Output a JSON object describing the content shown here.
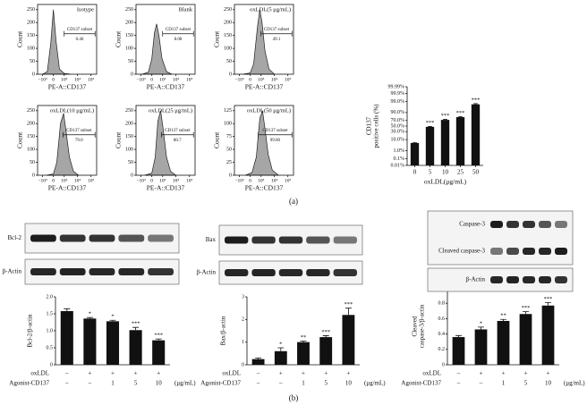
{
  "panel_labels": [
    "(a)",
    "(b)"
  ],
  "chart_data": [
    {
      "type": "flow-histogram",
      "title": "Isotype",
      "xlabel": "PE-A::CD137",
      "ylabel": "Count",
      "color": "#a6a6a6",
      "x": [
        -1000,
        -400,
        -150,
        0,
        150,
        400,
        1000,
        3000
      ],
      "values": [
        0,
        10,
        120,
        250,
        130,
        20,
        3,
        0
      ],
      "xlim": [
        -2400,
        262144
      ],
      "xticks": [
        {
          "value": -1000,
          "label": "−10³"
        },
        0,
        {
          "value": 1000,
          "label": "10³"
        },
        {
          "value": 10000,
          "label": "10⁴"
        },
        {
          "value": 100000,
          "label": "10⁵"
        }
      ],
      "ylim": [
        0,
        270
      ],
      "yticks": [
        0,
        50,
        100,
        150,
        200,
        250
      ],
      "gate": [
        1000,
        200000
      ],
      "gate_label": "CD137 subset",
      "gate_percent": 0.46
    },
    {
      "type": "flow-histogram",
      "title": "Blank",
      "xlabel": "PE-A::CD137",
      "ylabel": "Count",
      "color": "#a6a6a6",
      "x": [
        -800,
        -200,
        0,
        150,
        300,
        500,
        900,
        2000,
        5000
      ],
      "values": [
        0,
        8,
        60,
        160,
        195,
        150,
        60,
        10,
        0
      ],
      "xlim": [
        -2400,
        262144
      ],
      "xticks": [
        {
          "value": -1000,
          "label": "−10³"
        },
        0,
        {
          "value": 1000,
          "label": "10³"
        },
        {
          "value": 10000,
          "label": "10⁴"
        },
        {
          "value": 100000,
          "label": "10⁵"
        }
      ],
      "ylim": [
        0,
        270
      ],
      "yticks": [
        0,
        50,
        100,
        150,
        200,
        250
      ],
      "gate": [
        1000,
        200000
      ],
      "gate_label": "CD137 subset",
      "gate_percent": 8.08
    },
    {
      "type": "flow-histogram",
      "title": "oxLDL(5 μg/mL)",
      "xlabel": "PE-A::CD137",
      "ylabel": "Count",
      "color": "#a6a6a6",
      "x": [
        -500,
        0,
        200,
        500,
        800,
        1200,
        2000,
        4000,
        10000
      ],
      "values": [
        0,
        5,
        40,
        180,
        250,
        200,
        90,
        20,
        0
      ],
      "xlim": [
        -2400,
        262144
      ],
      "xticks": [
        {
          "value": -1000,
          "label": "−10³"
        },
        0,
        {
          "value": 1000,
          "label": "10³"
        },
        {
          "value": 10000,
          "label": "10⁴"
        },
        {
          "value": 100000,
          "label": "10⁵"
        }
      ],
      "ylim": [
        0,
        270
      ],
      "yticks": [
        0,
        50,
        100,
        150,
        200,
        250
      ],
      "gate": [
        1000,
        200000
      ],
      "gate_label": "CD137 subset",
      "gate_percent": 49.1
    },
    {
      "type": "flow-histogram",
      "title": "oxLDL(10 μg/mL)",
      "xlabel": "PE-A::CD137",
      "ylabel": "Count",
      "color": "#a6a6a6",
      "x": [
        -500,
        0,
        200,
        500,
        900,
        1400,
        2500,
        5000,
        12000
      ],
      "values": [
        0,
        5,
        50,
        200,
        240,
        170,
        70,
        15,
        0
      ],
      "xlim": [
        -2400,
        262144
      ],
      "xticks": [
        {
          "value": -1000,
          "label": "−10³"
        },
        0,
        {
          "value": 1000,
          "label": "10³"
        },
        {
          "value": 10000,
          "label": "10⁴"
        },
        {
          "value": 100000,
          "label": "10⁵"
        }
      ],
      "ylim": [
        0,
        270
      ],
      "yticks": [
        0,
        50,
        100,
        150,
        200,
        250
      ],
      "gate": [
        800,
        200000
      ],
      "gate_label": "CD137 subset",
      "gate_percent": {
        "value": 79,
        "label": "79.0"
      }
    },
    {
      "type": "flow-histogram",
      "title": "oxLDL(25 μg/mL)",
      "xlabel": "PE-A::CD137",
      "ylabel": "Count",
      "color": "#a6a6a6",
      "x": [
        -500,
        0,
        200,
        400,
        700,
        1100,
        2000,
        4000,
        10000
      ],
      "values": [
        0,
        8,
        70,
        210,
        250,
        180,
        70,
        15,
        0
      ],
      "xlim": [
        -2400,
        262144
      ],
      "xticks": [
        {
          "value": -1000,
          "label": "−10³"
        },
        0,
        {
          "value": 1000,
          "label": "10³"
        },
        {
          "value": 10000,
          "label": "10⁴"
        },
        {
          "value": 100000,
          "label": "10⁵"
        }
      ],
      "ylim": [
        0,
        270
      ],
      "yticks": [
        0,
        50,
        100,
        150,
        200,
        250
      ],
      "gate": [
        800,
        200000
      ],
      "gate_label": "CD137 subset",
      "gate_percent": 80.7
    },
    {
      "type": "flow-histogram",
      "title": "oxLDL(50 μg/mL)",
      "xlabel": "PE-A::CD137",
      "ylabel": "Count",
      "color": "#a6a6a6",
      "x": [
        -300,
        100,
        400,
        800,
        1300,
        2000,
        3500,
        7000,
        20000
      ],
      "values": [
        0,
        5,
        35,
        110,
        125,
        90,
        40,
        10,
        0
      ],
      "xlim": [
        -2400,
        262144
      ],
      "xticks": [
        {
          "value": -1000,
          "label": "−10³"
        },
        0,
        {
          "value": 1000,
          "label": "10³"
        },
        {
          "value": 10000,
          "label": "10⁴"
        },
        {
          "value": 100000,
          "label": "10⁵"
        }
      ],
      "ylim": [
        0,
        135
      ],
      "yticks": [
        0,
        25,
        50,
        75,
        100,
        125
      ],
      "gate": [
        600,
        200000
      ],
      "gate_label": "CD137 subset",
      "gate_percent": {
        "value": 99,
        "label": "99.00"
      }
    },
    {
      "type": "bar",
      "ylabel": [
        "CD137",
        "positive cells (%)"
      ],
      "xlabel": "oxLDL(μg/mL)",
      "color": "#111111",
      "scale": "probability",
      "categories": [
        "0",
        "5",
        "10",
        "25",
        "50"
      ],
      "values": [
        5.5,
        47,
        72,
        80,
        98
      ],
      "errors": [
        0.3,
        1.5,
        1.5,
        1.5,
        0.3
      ],
      "significance": [
        null,
        "***",
        "***",
        "***",
        "***"
      ],
      "ylim": [
        0.01,
        99.99
      ],
      "yticks": [
        {
          "value": 0.01,
          "label": "0.01%"
        },
        {
          "value": 0.1,
          "label": "0.1%"
        },
        {
          "value": 1,
          "label": "1.0%"
        },
        {
          "value": 10,
          "label": "10.0%"
        },
        {
          "value": 30,
          "label": "30.0%"
        },
        {
          "value": 50,
          "label": "50.0%"
        },
        {
          "value": 70,
          "label": "70.0%"
        },
        {
          "value": 90,
          "label": "90.0%"
        },
        {
          "value": 99,
          "label": "99.0%"
        },
        {
          "value": 99.9,
          "label": "99.9%"
        },
        {
          "value": 99.99,
          "label": "99.99%"
        }
      ]
    },
    {
      "type": "bar",
      "ylabel": [
        "Bcl-2/β-actin"
      ],
      "color": "#111111",
      "blots": [
        [
          "Bcl-2"
        ],
        [
          "β-Actin"
        ]
      ],
      "treatments": [
        {
          "name": "oxLDL",
          "labels": [
            "–",
            "+",
            "+",
            "+",
            "+"
          ]
        },
        {
          "name": "Agonist-CD137",
          "labels": [
            "–",
            "–",
            "1",
            "5",
            "10"
          ],
          "unit": "(μg/mL)"
        }
      ],
      "values": [
        1.58,
        1.36,
        1.28,
        1.02,
        0.72
      ],
      "errors": [
        0.07,
        0.03,
        0.03,
        0.08,
        0.04
      ],
      "significance": [
        null,
        "*",
        "*",
        "***",
        "***"
      ],
      "ylim": [
        0,
        2
      ],
      "yticks": [
        0,
        0.5,
        {
          "value": 1,
          "label": "1.0"
        },
        1.5,
        {
          "value": 2,
          "label": "2.0"
        }
      ]
    },
    {
      "type": "bar",
      "ylabel": [
        "Bax/β-actin"
      ],
      "color": "#111111",
      "blots": [
        [
          "Bax"
        ],
        [
          "β-Actin"
        ]
      ],
      "treatments": [
        {
          "name": "oxLDL",
          "labels": [
            "–",
            "+",
            "+",
            "+",
            "+"
          ]
        },
        {
          "name": "Agonist-CD137",
          "labels": [
            "–",
            "–",
            "1",
            "5",
            "10"
          ],
          "unit": "(μg/mL)"
        }
      ],
      "values": [
        0.25,
        0.6,
        1,
        1.22,
        2.2
      ],
      "errors": [
        0.05,
        0.15,
        0.05,
        0.06,
        0.3
      ],
      "significance": [
        null,
        "*",
        "**",
        "***",
        "***"
      ],
      "ylim": [
        0,
        3
      ],
      "yticks": [
        0,
        1,
        2,
        3
      ]
    },
    {
      "type": "bar",
      "ylabel": [
        "Cleaved",
        "caspase-3/β-actin"
      ],
      "color": "#111111",
      "blots": [
        [
          "Caspase-3",
          "Cleaved caspase-3"
        ],
        [
          "β-Actin"
        ]
      ],
      "treatments": [
        {
          "name": "oxLDL",
          "labels": [
            "–",
            "+",
            "+",
            "+",
            "+"
          ]
        },
        {
          "name": "Agonist-CD137",
          "labels": [
            "–",
            "–",
            "1",
            "5",
            "10"
          ],
          "unit": "(μg/mL)"
        }
      ],
      "values": [
        0.36,
        0.46,
        0.57,
        0.66,
        0.77
      ],
      "errors": [
        0.02,
        0.03,
        0.02,
        0.03,
        0.04
      ],
      "significance": [
        null,
        "*",
        "**",
        "***",
        "***"
      ],
      "ylim": [
        0,
        1
      ],
      "yticks": [
        0,
        0.2,
        0.4,
        0.6,
        0.8,
        {
          "value": 1,
          "label": "1.0"
        }
      ]
    }
  ]
}
